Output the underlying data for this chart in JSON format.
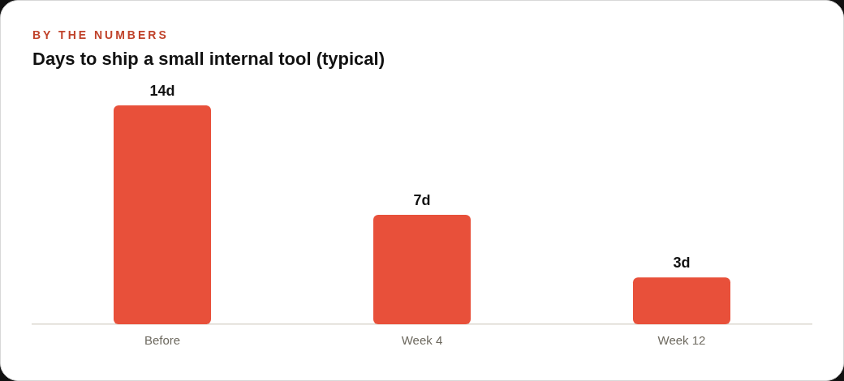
{
  "chart_data": {
    "type": "bar",
    "subtitle": "BY THE NUMBERS",
    "title": "Days to ship a small internal tool (typical)",
    "categories": [
      "Before",
      "Week 4",
      "Week 12"
    ],
    "values": [
      14,
      7,
      3
    ],
    "value_labels": [
      "14d",
      "7d",
      "3d"
    ],
    "color": "#e8503a",
    "grid": false,
    "legend": false,
    "tick_labels": "x"
  }
}
